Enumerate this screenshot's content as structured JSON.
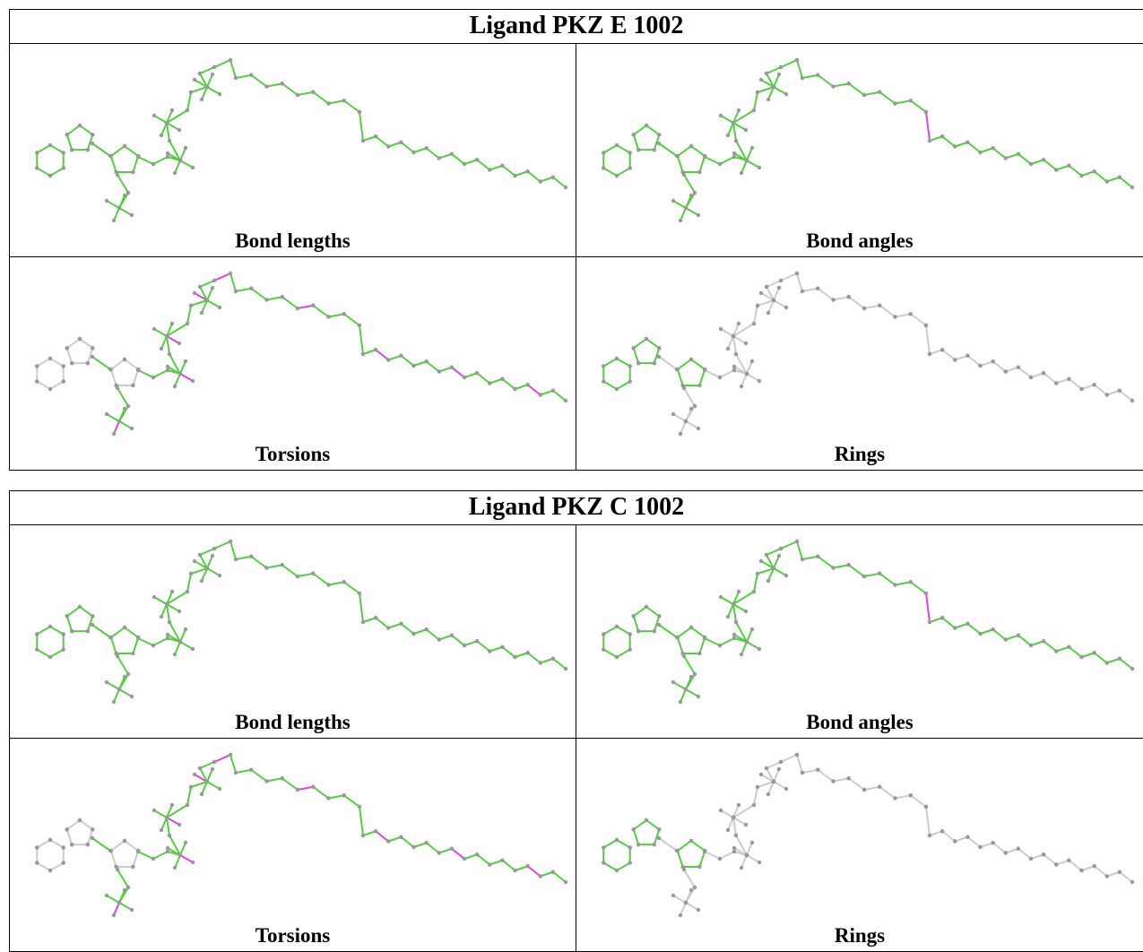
{
  "tables": [
    {
      "title": "Ligand PKZ E 1002",
      "panels": [
        {
          "caption": "Bond lengths"
        },
        {
          "caption": "Bond angles"
        },
        {
          "caption": "Torsions"
        },
        {
          "caption": "Rings"
        }
      ]
    },
    {
      "title": "Ligand PKZ C 1002",
      "panels": [
        {
          "caption": "Bond lengths"
        },
        {
          "caption": "Bond angles"
        },
        {
          "caption": "Torsions"
        },
        {
          "caption": "Rings"
        }
      ]
    }
  ]
}
